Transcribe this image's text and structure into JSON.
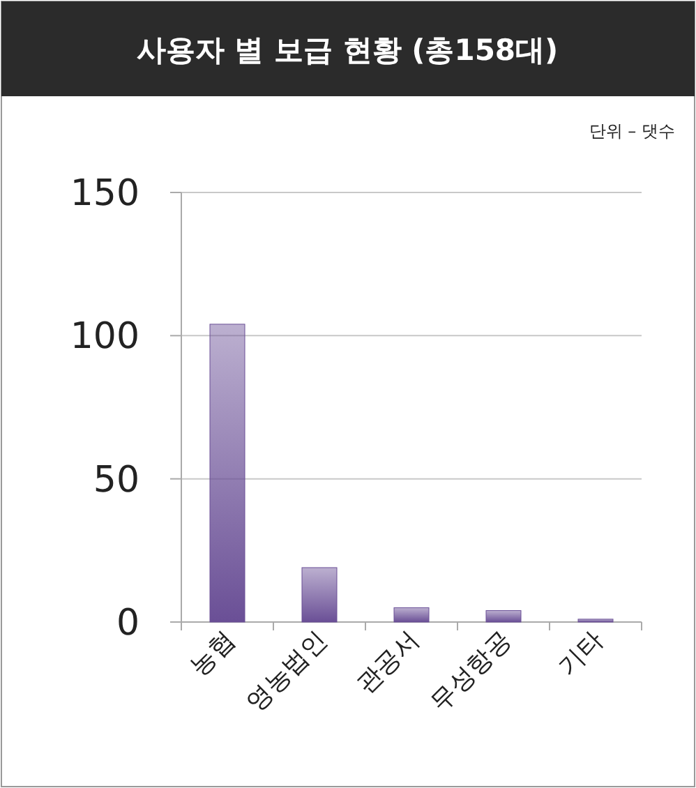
{
  "chart_data": {
    "type": "bar",
    "title": "사용자 별 보급 현황 (총158대)",
    "annotations": [
      "단위 – 댓수"
    ],
    "categories": [
      "농협",
      "영농법인",
      "관공서",
      "무성항공",
      "기타"
    ],
    "values": [
      104,
      19,
      5,
      4,
      1
    ],
    "color": "#6a4f96",
    "ylim": [
      0,
      150
    ],
    "yticks": [
      0,
      50,
      100,
      150
    ],
    "grid": "y"
  }
}
